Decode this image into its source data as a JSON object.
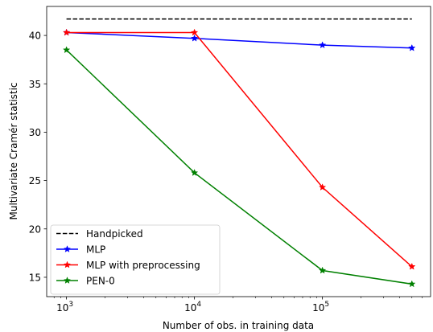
{
  "chart_data": {
    "type": "line",
    "xlabel": "Number of obs. in training data",
    "ylabel": "Multivariate Cramér statistic",
    "xscale": "log",
    "xlim": [
      700,
      700000
    ],
    "ylim": [
      13,
      43
    ],
    "x_ticks": [
      {
        "value": 1000,
        "base": "10",
        "exp": "3"
      },
      {
        "value": 10000,
        "base": "10",
        "exp": "4"
      },
      {
        "value": 100000,
        "base": "10",
        "exp": "5"
      }
    ],
    "y_ticks": [
      15,
      20,
      25,
      30,
      35,
      40
    ],
    "legend_position": "lower-left",
    "series": [
      {
        "name": "Handpicked",
        "color": "#000000",
        "style": "dashed",
        "marker": "none",
        "x": [
          1000,
          500000
        ],
        "y": [
          41.7,
          41.7
        ]
      },
      {
        "name": "MLP",
        "color": "#0000ff",
        "style": "solid",
        "marker": "star",
        "x": [
          1000,
          10000,
          100000,
          500000
        ],
        "y": [
          40.3,
          39.7,
          39.0,
          38.7
        ]
      },
      {
        "name": "MLP with preprocessing",
        "color": "#ff0000",
        "style": "solid",
        "marker": "star",
        "x": [
          1000,
          10000,
          100000,
          500000
        ],
        "y": [
          40.3,
          40.3,
          24.3,
          16.1
        ]
      },
      {
        "name": "PEN-0",
        "color": "#008000",
        "style": "solid",
        "marker": "star",
        "x": [
          1000,
          10000,
          100000,
          500000
        ],
        "y": [
          38.5,
          25.8,
          15.7,
          14.3
        ]
      }
    ]
  }
}
